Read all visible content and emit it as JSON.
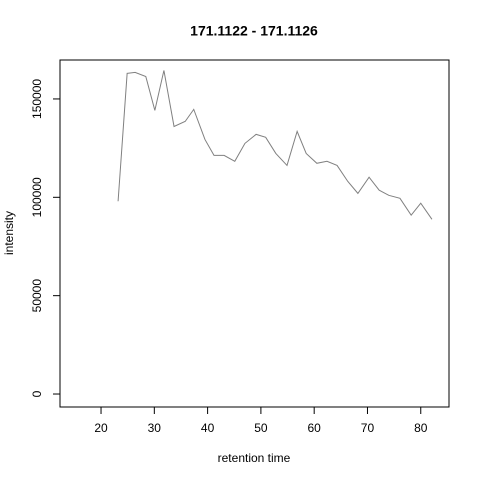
{
  "chart_data": {
    "type": "line",
    "title": "171.1122 - 171.1126",
    "xlabel": "retention time",
    "ylabel": "intensity",
    "x": [
      23.2,
      24.9,
      26.4,
      28.4,
      30.1,
      31.8,
      33.7,
      35.8,
      37.4,
      39.5,
      41.2,
      43.1,
      45.1,
      47.0,
      49.1,
      50.9,
      52.8,
      54.9,
      56.8,
      58.5,
      60.5,
      62.4,
      64.3,
      66.3,
      68.2,
      70.3,
      72.2,
      74.0,
      76.1,
      78.2,
      80.0,
      82.1
    ],
    "series": [
      {
        "name": "intensity",
        "color": "#808080",
        "values": [
          98000,
          163000,
          163500,
          161400,
          144200,
          164500,
          136000,
          138600,
          144700,
          129400,
          121300,
          121300,
          118300,
          127400,
          132000,
          130500,
          122300,
          116200,
          133500,
          122300,
          117300,
          118300,
          116200,
          108100,
          102000,
          110200,
          103600,
          101000,
          99500,
          90900,
          97000,
          88800
        ]
      }
    ],
    "xlim": [
      12.3,
      85.3
    ],
    "xticks": [
      20,
      30,
      40,
      50,
      60,
      70,
      80
    ],
    "ylim": [
      -6600,
      169800
    ],
    "yticks": [
      0,
      50000,
      100000,
      150000
    ]
  }
}
